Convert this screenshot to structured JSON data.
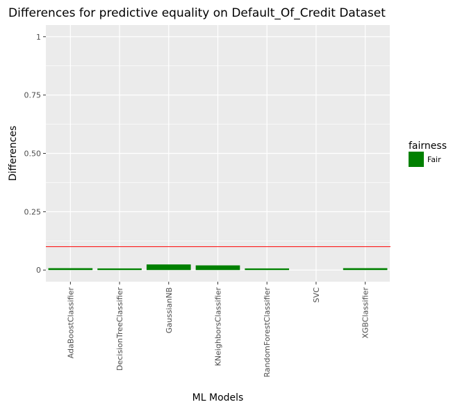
{
  "chart_data": {
    "type": "bar",
    "title": "Differences for predictive equality on Default_Of_Credit Dataset",
    "xlabel": "ML Models",
    "ylabel": "Differences",
    "categories": [
      "AdaBoostClassifier",
      "DecisionTreeClassifier",
      "GaussianNB",
      "KNeighborsClassifier",
      "RandomForestClassifier",
      "SVC",
      "XGBClassifier"
    ],
    "series": [
      {
        "name": "Fair",
        "values": [
          0.008,
          0.007,
          0.024,
          0.02,
          0.007,
          0.0,
          0.008
        ],
        "color": "#008000"
      }
    ],
    "ylim": [
      -0.05,
      1.05
    ],
    "yticks": [
      0,
      0.25,
      0.5,
      0.75,
      1
    ],
    "ytick_labels": [
      "0",
      "0.25",
      "0.50",
      "0.75",
      "1"
    ],
    "threshold": {
      "value": 0.1,
      "color": "#ff0000"
    },
    "legend": {
      "title": "fairness",
      "position": "right",
      "entries": [
        {
          "label": "Fair",
          "color": "#008000"
        }
      ]
    },
    "panel_background": "#ebebeb",
    "grid_color": "#ffffff"
  }
}
